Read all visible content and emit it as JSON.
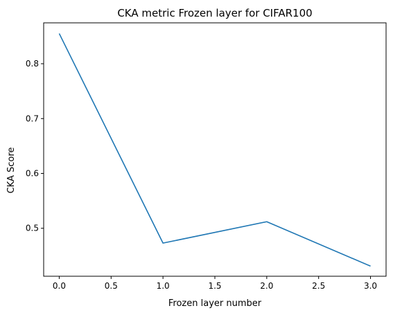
{
  "chart_data": {
    "type": "line",
    "title": "CKA metric Frozen layer for CIFAR100",
    "xlabel": "Frozen layer number",
    "ylabel": "CKA Score",
    "xlim": [
      -0.15,
      3.15
    ],
    "ylim": [
      0.4126,
      0.8745
    ],
    "x_ticks": [
      0.0,
      0.5,
      1.0,
      1.5,
      2.0,
      2.5,
      3.0
    ],
    "x_tick_labels": [
      "0.0",
      "0.5",
      "1.0",
      "1.5",
      "2.0",
      "2.5",
      "3.0"
    ],
    "y_ticks": [
      0.5,
      0.6,
      0.7,
      0.8
    ],
    "y_tick_labels": [
      "0.5",
      "0.6",
      "0.7",
      "0.8"
    ],
    "grid": false,
    "series": [
      {
        "color": "#1f77b4",
        "x": [
          0,
          1,
          2,
          3
        ],
        "y": [
          0.855,
          0.473,
          0.512,
          0.431
        ]
      }
    ]
  }
}
